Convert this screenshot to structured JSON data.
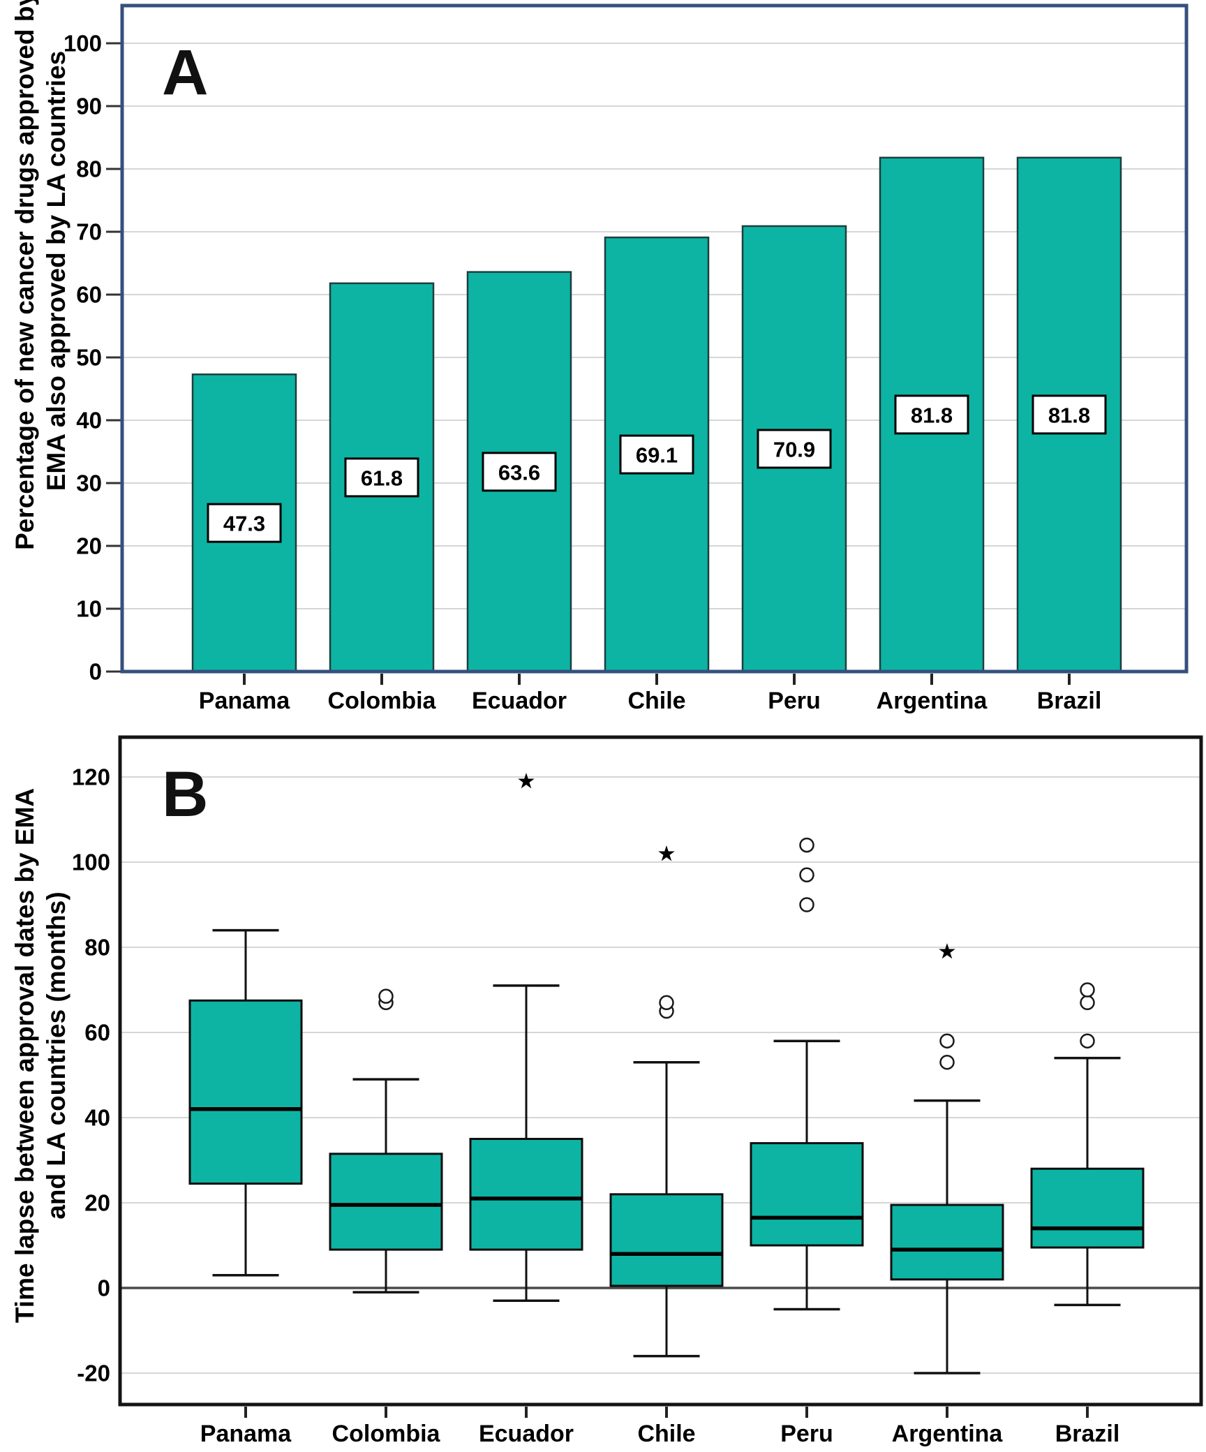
{
  "figure": {
    "description": "Two-panel figure comparing EMA-approved cancer drugs across Latin American countries"
  },
  "panels": {
    "a": {
      "label": "A",
      "y_axis_title_line1": "Percentage of new cancer drugs approved by",
      "y_axis_title_line2": "EMA also approved by LA countries"
    },
    "b": {
      "label": "B",
      "y_axis_title_line1": "Time lapse between approval dates by EMA",
      "y_axis_title_line2": "and LA countries (months)"
    }
  },
  "colors": {
    "teal_fill": "#0db4a3",
    "bar_border": "#1d3f3f",
    "box_border": "#0d0d0d",
    "panel_a_border": "#35507e",
    "panel_b_border": "#141414",
    "gridline": "#d6d6d6",
    "zero_line": "#4a4a4a",
    "text": "#000000",
    "label_box_fill": "#ffffff"
  },
  "chart_data": [
    {
      "panel": "A",
      "type": "bar",
      "categories": [
        "Panama",
        "Colombia",
        "Ecuador",
        "Chile",
        "Peru",
        "Argentina",
        "Brazil"
      ],
      "values": [
        47.3,
        61.8,
        63.6,
        69.1,
        70.9,
        81.8,
        81.8
      ],
      "value_labels": [
        "47.3",
        "61.8",
        "63.6",
        "69.1",
        "70.9",
        "81.8",
        "81.8"
      ],
      "ylabel": "Percentage of new cancer drugs approved by EMA also approved by LA countries",
      "xlabel": "",
      "yticks": [
        0,
        10,
        20,
        30,
        40,
        50,
        60,
        70,
        80,
        90,
        100
      ],
      "ylim": [
        0,
        106
      ],
      "grid": true,
      "legend": "none"
    },
    {
      "panel": "B",
      "type": "box",
      "categories": [
        "Panama",
        "Colombia",
        "Ecuador",
        "Chile",
        "Peru",
        "Argentina",
        "Brazil"
      ],
      "ylabel": "Time lapse between approval dates by EMA and LA countries (months)",
      "xlabel": "",
      "yticks": [
        120,
        100,
        80,
        60,
        40,
        20,
        0,
        -20
      ],
      "ylim": [
        -27,
        124
      ],
      "grid": true,
      "legend": "none",
      "series": [
        {
          "name": "Panama",
          "whisker_low": 3,
          "q1": 24.5,
          "median": 42,
          "q3": 67.5,
          "whisker_high": 84,
          "outliers_circle": [],
          "outliers_star": []
        },
        {
          "name": "Colombia",
          "whisker_low": -1,
          "q1": 9,
          "median": 19.5,
          "q3": 31.5,
          "whisker_high": 49,
          "outliers_circle": [
            67,
            68.5
          ],
          "outliers_star": []
        },
        {
          "name": "Ecuador",
          "whisker_low": -3,
          "q1": 9,
          "median": 21,
          "q3": 35,
          "whisker_high": 71,
          "outliers_circle": [],
          "outliers_star": [
            119
          ]
        },
        {
          "name": "Chile",
          "whisker_low": -16,
          "q1": 0.5,
          "median": 8,
          "q3": 22,
          "whisker_high": 53,
          "outliers_circle": [
            65,
            67
          ],
          "outliers_star": [
            102
          ]
        },
        {
          "name": "Peru",
          "whisker_low": -5,
          "q1": 10,
          "median": 16.5,
          "q3": 34,
          "whisker_high": 58,
          "outliers_circle": [
            90,
            97,
            104
          ],
          "outliers_star": []
        },
        {
          "name": "Argentina",
          "whisker_low": -20,
          "q1": 2,
          "median": 9,
          "q3": 19.5,
          "whisker_high": 44,
          "outliers_circle": [
            53,
            58
          ],
          "outliers_star": [
            79
          ]
        },
        {
          "name": "Brazil",
          "whisker_low": -4,
          "q1": 9.5,
          "median": 14,
          "q3": 28,
          "whisker_high": 54,
          "outliers_circle": [
            58,
            67,
            70
          ],
          "outliers_star": []
        }
      ]
    }
  ]
}
